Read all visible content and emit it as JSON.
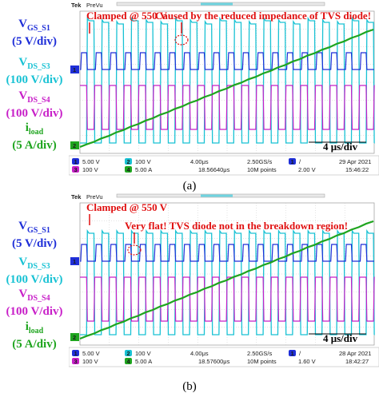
{
  "panels": [
    {
      "id": "a",
      "caption": "(a)",
      "labels": [
        {
          "main": "V",
          "sub": "GS_S1",
          "scale": "(5 V/div)",
          "color": "#1f2fd8"
        },
        {
          "main": "V",
          "sub": "DS_S3",
          "scale": "(100 V/div)",
          "color": "#19c2d4"
        },
        {
          "main": "V",
          "sub": "DS_S4",
          "scale": "(100 V/div)",
          "color": "#c81fc8"
        },
        {
          "main": "i",
          "sub": "load",
          "scale": "(5 A/div)",
          "color": "#1fa51f"
        }
      ],
      "scope": {
        "brand": "Tek",
        "mode": "PreVu",
        "annotation_1": "Clamped @ 550 V",
        "annotation_2": "Caused by the reduced impedance of TVS diode!",
        "time_div_label": "4 μs/div",
        "ch1_scale": "5.00 V",
        "ch2_scale": "100 V",
        "ch3_scale": "100 V",
        "ch4_scale": "5.00 A",
        "time_div": "4.00μs",
        "trig_pos": "18.56640μs",
        "sample_rate": "2.50GS/s",
        "record_length": "10M points",
        "trig_channel": "1",
        "trig_level": "2.00 V",
        "date": "29 Apr 2021",
        "time": "15:46:22"
      }
    },
    {
      "id": "b",
      "caption": "(b)",
      "labels": [
        {
          "main": "V",
          "sub": "GS_S1",
          "scale": "(5 V/div)",
          "color": "#1f2fd8"
        },
        {
          "main": "V",
          "sub": "DS_S3",
          "scale": "(100 V/div)",
          "color": "#19c2d4"
        },
        {
          "main": "V",
          "sub": "DS_S4",
          "scale": "(100 V/div)",
          "color": "#c81fc8"
        },
        {
          "main": "i",
          "sub": "load",
          "scale": "(5 A/div)",
          "color": "#1fa51f"
        }
      ],
      "scope": {
        "brand": "Tek",
        "mode": "PreVu",
        "annotation_1": "Clamped @ 550 V",
        "annotation_2": "Very flat! TVS diode not in the breakdown region!",
        "time_div_label": "4 μs/div",
        "ch1_scale": "5.00 V",
        "ch2_scale": "100 V",
        "ch3_scale": "100 V",
        "ch4_scale": "5.00 A",
        "time_div": "4.00μs",
        "trig_pos": "18.57600μs",
        "sample_rate": "2.50GS/s",
        "record_length": "10M points",
        "trig_channel": "1",
        "trig_level": "1.60 V",
        "date": "28 Apr 2021",
        "time": "18:42:27"
      }
    }
  ],
  "chart_data": [
    {
      "type": "line",
      "title": "",
      "xlabel": "",
      "ylabel": "",
      "x_unit_per_div": "4 μs",
      "series": [
        {
          "name": "VGS_S1",
          "color": "#1f2fd8",
          "note": "5 V/div gate pulse train"
        },
        {
          "name": "VDS_S3",
          "color": "#19c2d4",
          "note": "100 V/div, clamped @ 550 V"
        },
        {
          "name": "VDS_S4",
          "color": "#c81fc8",
          "note": "100 V/div"
        },
        {
          "name": "iload",
          "color": "#1fa51f",
          "note": "5 A/div, ramping staircase"
        }
      ]
    },
    {
      "type": "line",
      "title": "",
      "xlabel": "",
      "ylabel": "",
      "x_unit_per_div": "4 μs",
      "series": [
        {
          "name": "VGS_S1",
          "color": "#1f2fd8",
          "note": "5 V/div gate pulse train"
        },
        {
          "name": "VDS_S3",
          "color": "#19c2d4",
          "note": "100 V/div, clamped @ 550 V"
        },
        {
          "name": "VDS_S4",
          "color": "#c81fc8",
          "note": "100 V/div"
        },
        {
          "name": "iload",
          "color": "#1fa51f",
          "note": "5 A/div, ramping staircase"
        }
      ]
    }
  ],
  "colors": {
    "ch1": "#1f2fd8",
    "ch2": "#19c2d4",
    "ch3": "#c81fc8",
    "ch4": "#1fa51f",
    "annotation": "#e01010"
  }
}
